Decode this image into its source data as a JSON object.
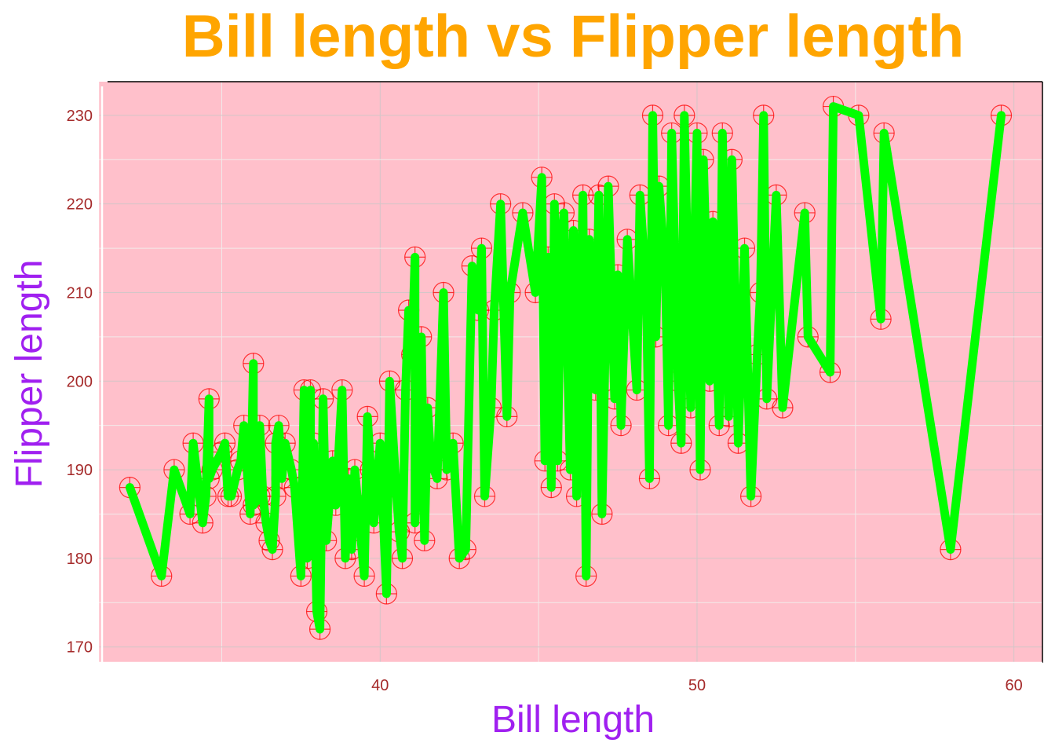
{
  "chart_data": {
    "type": "line",
    "title": "Bill length vs Flipper length",
    "xlabel": "Bill length",
    "ylabel": "Flipper length",
    "xlim": [
      31.1,
      60.9
    ],
    "ylim": [
      168.2,
      233.8
    ],
    "x_ticks": [
      40,
      50,
      60
    ],
    "y_ticks": [
      170,
      180,
      190,
      200,
      210,
      220,
      230
    ],
    "grid": true,
    "legend": "none",
    "colors": {
      "title": "#FFA500",
      "axis_label": "#A020F0",
      "tick_label": "#A52A2A",
      "panel_background": "#FFC0CB",
      "line": "#00FF00",
      "points": "#FF0000"
    },
    "points": [
      [
        32.1,
        188
      ],
      [
        33.1,
        178
      ],
      [
        33.5,
        190
      ],
      [
        34.0,
        185
      ],
      [
        34.1,
        193
      ],
      [
        34.4,
        184
      ],
      [
        34.5,
        187
      ],
      [
        34.6,
        198
      ],
      [
        34.6,
        189
      ],
      [
        34.7,
        190
      ],
      [
        35.0,
        192
      ],
      [
        35.1,
        193
      ],
      [
        35.2,
        187
      ],
      [
        35.3,
        187
      ],
      [
        35.5,
        190
      ],
      [
        35.6,
        191
      ],
      [
        35.7,
        195
      ],
      [
        35.9,
        185
      ],
      [
        36.0,
        202
      ],
      [
        36.0,
        186
      ],
      [
        36.2,
        187
      ],
      [
        36.2,
        195
      ],
      [
        36.3,
        187
      ],
      [
        36.4,
        184
      ],
      [
        36.5,
        182
      ],
      [
        36.6,
        181
      ],
      [
        36.7,
        187
      ],
      [
        36.7,
        193
      ],
      [
        36.8,
        195
      ],
      [
        36.9,
        189
      ],
      [
        37.0,
        193
      ],
      [
        37.2,
        190
      ],
      [
        37.3,
        188
      ],
      [
        37.5,
        178
      ],
      [
        37.6,
        199
      ],
      [
        37.7,
        180
      ],
      [
        37.8,
        199
      ],
      [
        37.8,
        181
      ],
      [
        37.9,
        193
      ],
      [
        38.0,
        174
      ],
      [
        38.1,
        172
      ],
      [
        38.2,
        198
      ],
      [
        38.3,
        182
      ],
      [
        38.5,
        191
      ],
      [
        38.6,
        186
      ],
      [
        38.8,
        199
      ],
      [
        38.9,
        180
      ],
      [
        39.0,
        189
      ],
      [
        39.1,
        181
      ],
      [
        39.2,
        190
      ],
      [
        39.3,
        186
      ],
      [
        39.5,
        178
      ],
      [
        39.6,
        196
      ],
      [
        39.7,
        190
      ],
      [
        39.8,
        184
      ],
      [
        40.0,
        193
      ],
      [
        40.2,
        176
      ],
      [
        40.3,
        200
      ],
      [
        40.5,
        188
      ],
      [
        40.6,
        183
      ],
      [
        40.7,
        180
      ],
      [
        40.8,
        199
      ],
      [
        40.9,
        208
      ],
      [
        41.0,
        203
      ],
      [
        41.1,
        214
      ],
      [
        41.1,
        184
      ],
      [
        41.3,
        205
      ],
      [
        41.4,
        182
      ],
      [
        41.5,
        197
      ],
      [
        41.6,
        191
      ],
      [
        41.8,
        189
      ],
      [
        42.0,
        210
      ],
      [
        42.1,
        190
      ],
      [
        42.3,
        193
      ],
      [
        42.5,
        180
      ],
      [
        42.7,
        181
      ],
      [
        42.9,
        213
      ],
      [
        43.1,
        208
      ],
      [
        43.2,
        215
      ],
      [
        43.3,
        187
      ],
      [
        43.5,
        197
      ],
      [
        43.6,
        208
      ],
      [
        43.8,
        220
      ],
      [
        44.0,
        196
      ],
      [
        44.1,
        210
      ],
      [
        44.5,
        219
      ],
      [
        44.9,
        210
      ],
      [
        45.1,
        223
      ],
      [
        45.2,
        191
      ],
      [
        45.3,
        214
      ],
      [
        45.4,
        188
      ],
      [
        45.5,
        220
      ],
      [
        45.6,
        191
      ],
      [
        45.7,
        215
      ],
      [
        45.8,
        219
      ],
      [
        46.0,
        190
      ],
      [
        46.1,
        217
      ],
      [
        46.2,
        187
      ],
      [
        46.4,
        221
      ],
      [
        46.5,
        178
      ],
      [
        46.6,
        216
      ],
      [
        46.8,
        199
      ],
      [
        46.9,
        221
      ],
      [
        47.0,
        185
      ],
      [
        47.2,
        222
      ],
      [
        47.4,
        198
      ],
      [
        47.5,
        212
      ],
      [
        47.6,
        195
      ],
      [
        47.8,
        216
      ],
      [
        48.1,
        199
      ],
      [
        48.2,
        221
      ],
      [
        48.4,
        210
      ],
      [
        48.5,
        189
      ],
      [
        48.6,
        230
      ],
      [
        48.7,
        205
      ],
      [
        48.8,
        222
      ],
      [
        49.0,
        212
      ],
      [
        49.1,
        195
      ],
      [
        49.2,
        228
      ],
      [
        49.4,
        200
      ],
      [
        49.5,
        193
      ],
      [
        49.6,
        230
      ],
      [
        49.8,
        197
      ],
      [
        50.0,
        228
      ],
      [
        50.1,
        190
      ],
      [
        50.2,
        225
      ],
      [
        50.4,
        200
      ],
      [
        50.5,
        218
      ],
      [
        50.7,
        195
      ],
      [
        50.8,
        228
      ],
      [
        51.0,
        196
      ],
      [
        51.1,
        225
      ],
      [
        51.3,
        193
      ],
      [
        51.5,
        215
      ],
      [
        51.7,
        187
      ],
      [
        51.9,
        203
      ],
      [
        52.0,
        210
      ],
      [
        52.1,
        230
      ],
      [
        52.2,
        198
      ],
      [
        52.5,
        221
      ],
      [
        52.7,
        197
      ],
      [
        53.4,
        219
      ],
      [
        53.5,
        205
      ],
      [
        54.2,
        201
      ],
      [
        54.3,
        231
      ],
      [
        55.1,
        230
      ],
      [
        55.8,
        207
      ],
      [
        55.9,
        228
      ],
      [
        58.0,
        181
      ],
      [
        59.6,
        230
      ]
    ]
  }
}
